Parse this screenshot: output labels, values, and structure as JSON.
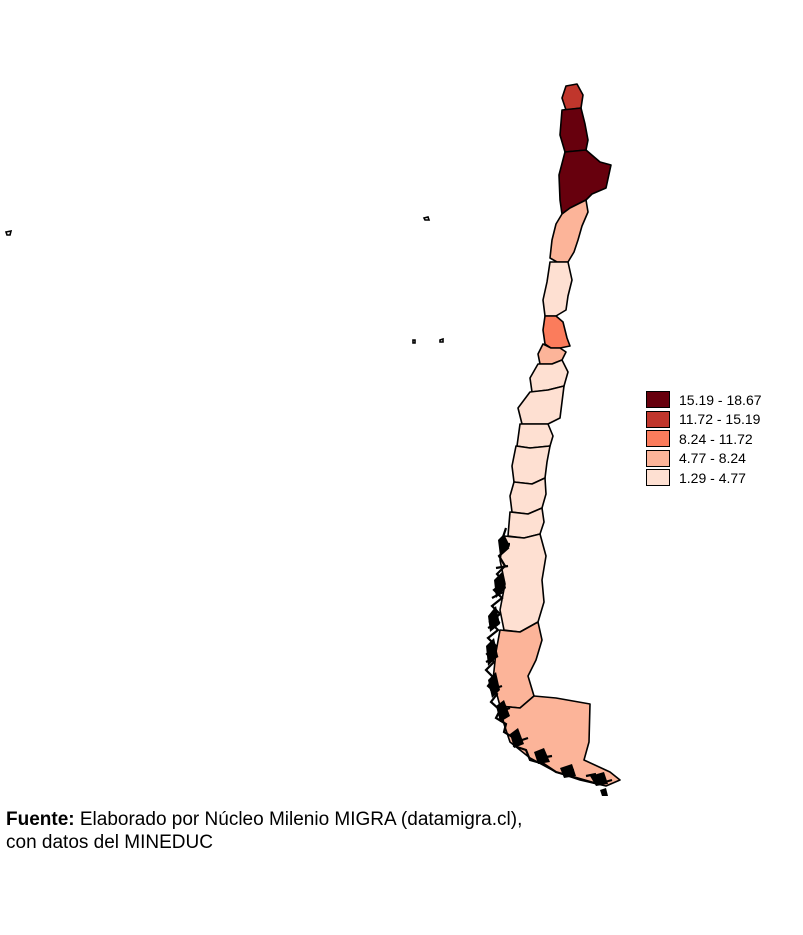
{
  "legend": {
    "items": [
      {
        "label": "15.19 - 18.67",
        "color": "#67000d"
      },
      {
        "label": "11.72 - 15.19",
        "color": "#c0362c"
      },
      {
        "label": "8.24 - 11.72",
        "color": "#fb7c5c"
      },
      {
        "label": "4.77 - 8.24",
        "color": "#fcb499"
      },
      {
        "label": "1.29 - 4.77",
        "color": "#fee0d2"
      }
    ]
  },
  "caption": {
    "bold": "Fuente:",
    "line1": " Elaborado por Núcleo Milenio MIGRA (datamigra.cl),",
    "line2": " con datos del MINEDUC"
  },
  "regions": [
    {
      "id": "arica",
      "class_index": 1
    },
    {
      "id": "tarapaca",
      "class_index": 0
    },
    {
      "id": "antofagasta",
      "class_index": 0
    },
    {
      "id": "atacama",
      "class_index": 3
    },
    {
      "id": "coquimbo",
      "class_index": 4
    },
    {
      "id": "valparaiso",
      "class_index": 2
    },
    {
      "id": "metropolitana",
      "class_index": 3
    },
    {
      "id": "ohiggins",
      "class_index": 4
    },
    {
      "id": "maule",
      "class_index": 4
    },
    {
      "id": "nuble",
      "class_index": 4
    },
    {
      "id": "biobio",
      "class_index": 4
    },
    {
      "id": "araucania",
      "class_index": 4
    },
    {
      "id": "los-rios",
      "class_index": 4
    },
    {
      "id": "los-lagos",
      "class_index": 4
    },
    {
      "id": "aysen",
      "class_index": 3
    },
    {
      "id": "magallanes",
      "class_index": 3
    }
  ]
}
